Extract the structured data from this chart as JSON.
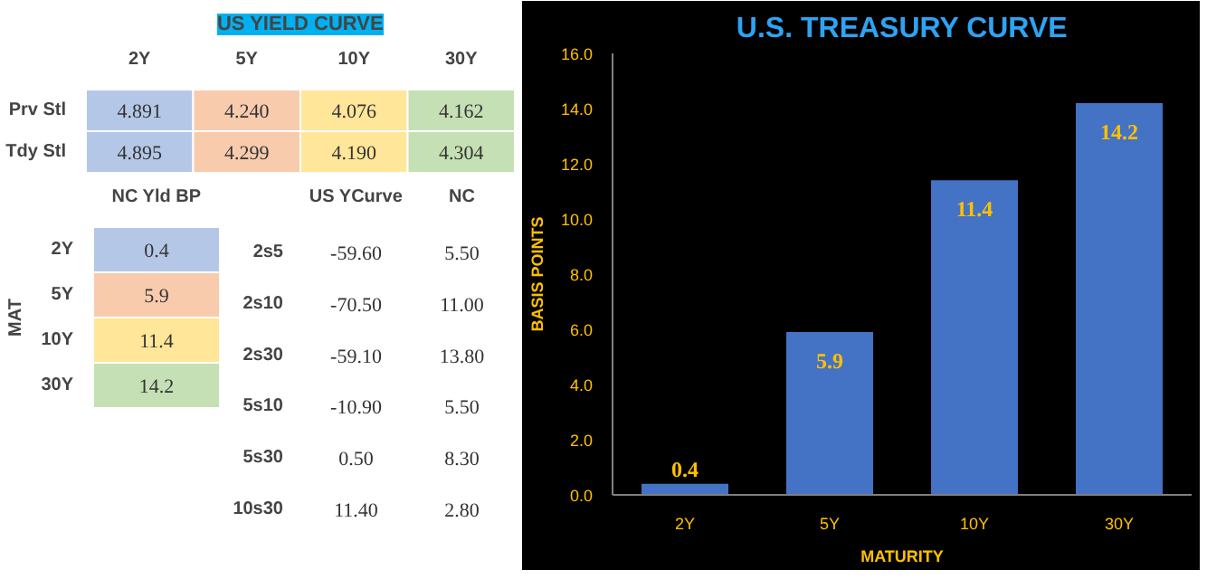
{
  "chart_data": [
    {
      "type": "heatmap",
      "title": "US YIELD CURVE",
      "categories": [
        "2Y",
        "5Y",
        "10Y",
        "30Y"
      ],
      "y_categories": [
        "Prv Stl",
        "Tdy Stl"
      ],
      "cells": [
        [
          4.891,
          4.24,
          4.076,
          4.162
        ],
        [
          4.895,
          4.299,
          4.19,
          4.304
        ]
      ],
      "cell_labels": [
        [
          "4.891",
          "4.240",
          "4.076",
          "4.162"
        ],
        [
          "4.895",
          "4.299",
          "4.190",
          "4.304"
        ]
      ],
      "colors": [
        [
          "#b4c7e7",
          "#f8cbad",
          "#ffe699",
          "#c5e0b4"
        ],
        [
          "#b4c7e7",
          "#f8cbad",
          "#ffe699",
          "#c5e0b4"
        ]
      ]
    },
    {
      "type": "heatmap",
      "ylabel": "MAT",
      "categories": [
        "NC Yld BP"
      ],
      "y_categories": [
        "2Y",
        "5Y",
        "10Y",
        "30Y"
      ],
      "cells": [
        [
          0.4
        ],
        [
          5.9
        ],
        [
          11.4
        ],
        [
          14.2
        ]
      ],
      "cell_labels": [
        [
          "0.4"
        ],
        [
          "5.9"
        ],
        [
          "11.4"
        ],
        [
          "14.2"
        ]
      ],
      "colors": [
        [
          "#b4c7e7"
        ],
        [
          "#f8cbad"
        ],
        [
          "#ffe699"
        ],
        [
          "#c5e0b4"
        ]
      ]
    },
    {
      "type": "heatmap",
      "categories": [
        "US YCurve",
        "NC"
      ],
      "y_categories": [
        "2s5",
        "2s10",
        "2s30",
        "5s10",
        "5s30",
        "10s30"
      ],
      "cells": [
        [
          -59.6,
          5.5
        ],
        [
          -70.5,
          11.0
        ],
        [
          -59.1,
          13.8
        ],
        [
          -10.9,
          5.5
        ],
        [
          0.5,
          8.3
        ],
        [
          11.4,
          2.8
        ]
      ],
      "cell_labels": [
        [
          "-59.60",
          "5.50"
        ],
        [
          "-70.50",
          "11.00"
        ],
        [
          "-59.10",
          "13.80"
        ],
        [
          "-10.90",
          "5.50"
        ],
        [
          "0.50",
          "8.30"
        ],
        [
          "11.40",
          "2.80"
        ]
      ]
    },
    {
      "type": "bar",
      "title": "U.S. TREASURY CURVE",
      "xlabel": "MATURITY",
      "ylabel": "BASIS POINTS",
      "categories": [
        "2Y",
        "5Y",
        "10Y",
        "30Y"
      ],
      "values": [
        0.4,
        5.9,
        11.4,
        14.2
      ],
      "color": "#4472c4",
      "data_labels": true,
      "ylim": [
        0,
        16
      ],
      "yticks": [
        {
          "value": 0,
          "label": "0.0"
        },
        {
          "value": 2,
          "label": "2.0"
        },
        {
          "value": 4,
          "label": "4.0"
        },
        {
          "value": 6,
          "label": "6.0"
        },
        {
          "value": 8,
          "label": "8.0"
        },
        {
          "value": 10,
          "label": "10.0"
        },
        {
          "value": 12,
          "label": "12.0"
        },
        {
          "value": 14,
          "label": "14.0"
        },
        {
          "value": 16,
          "label": "16.0"
        }
      ],
      "grid": false
    }
  ]
}
